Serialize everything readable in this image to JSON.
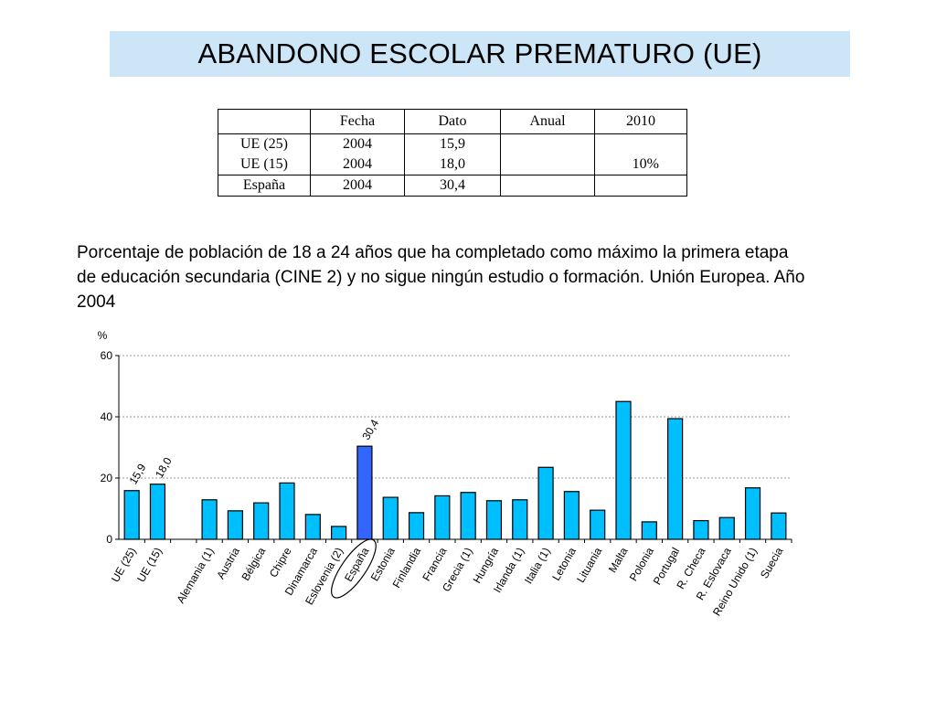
{
  "title": "ABANDONO ESCOLAR PREMATURO (UE)",
  "table": {
    "headers": [
      "",
      "Fecha",
      "Dato",
      "Anual",
      "2010"
    ],
    "rows": [
      [
        "UE (25)",
        "2004",
        "15,9",
        "",
        ""
      ],
      [
        "UE (15)",
        "2004",
        "18,0",
        "",
        "10%"
      ],
      [
        "España",
        "2004",
        "30,4",
        "",
        ""
      ]
    ]
  },
  "caption": "Porcentaje de población de 18 a 24 años que ha completado como máximo la primera etapa de educación secundaria (CINE 2) y no sigue ningún estudio o formación. Unión Europea. Año 2004",
  "chart_data": {
    "type": "bar",
    "ylabel": "%",
    "ylim": [
      0,
      60
    ],
    "yticks": [
      0,
      20,
      40,
      60
    ],
    "grid": true,
    "colors": {
      "bar": "#00bfff",
      "highlight": "#3366ff",
      "grid": "#999999"
    },
    "highlight": "España",
    "circled": "España",
    "categories": [
      "UE (25)",
      "UE (15)",
      "",
      "Alemania (1)",
      "Austria",
      "Bélgica",
      "Chipre",
      "Dinamarca",
      "Eslovenia (2)",
      "España",
      "Estonia",
      "Finlandia",
      "Francia",
      "Grecia (1)",
      "Hungría",
      "Irlanda (1)",
      "Italia (1)",
      "Letonia",
      "Lituania",
      "Malta",
      "Polonia",
      "Portugal",
      "R. Checa",
      "R. Eslovaca",
      "Reino Unido (1)",
      "Suecia"
    ],
    "values": [
      15.9,
      18.0,
      null,
      12.9,
      9.3,
      11.9,
      18.4,
      8.1,
      4.2,
      30.4,
      13.7,
      8.7,
      14.2,
      15.3,
      12.6,
      12.9,
      23.5,
      15.6,
      9.5,
      45.0,
      5.7,
      39.4,
      6.1,
      7.1,
      16.8,
      8.6
    ],
    "data_labels": {
      "UE (25)": "15,9",
      "UE (15)": "18,0",
      "España": "30,4"
    }
  }
}
